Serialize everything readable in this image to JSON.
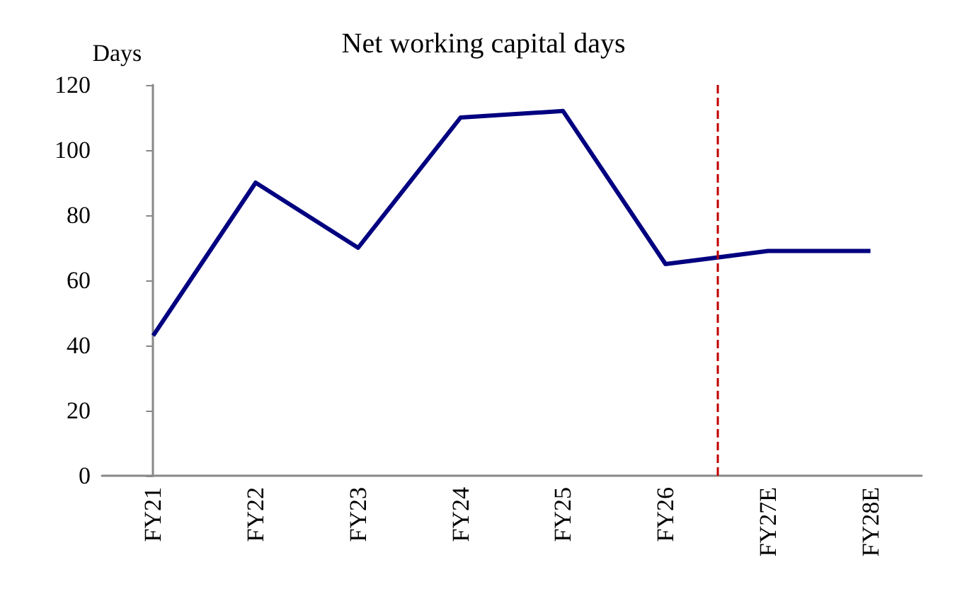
{
  "chart_data": {
    "type": "line",
    "title": "Net working capital days",
    "ylabel": "Days",
    "categories": [
      "FY21",
      "FY22",
      "FY23",
      "FY24",
      "FY25",
      "FY26",
      "FY27E",
      "FY28E"
    ],
    "series": [
      {
        "color": "#000080",
        "values": [
          43,
          90,
          70,
          110,
          112,
          65,
          69,
          69
        ]
      }
    ],
    "ylim": [
      0,
      120
    ],
    "yticks": [
      0,
      20,
      40,
      60,
      80,
      100,
      120
    ],
    "grid": false,
    "marker": "none",
    "line_style": "solid",
    "ref_lines": [
      {
        "axis": "x",
        "value": "FY27E",
        "color": "#c00000",
        "line_style": "dashed"
      }
    ]
  }
}
